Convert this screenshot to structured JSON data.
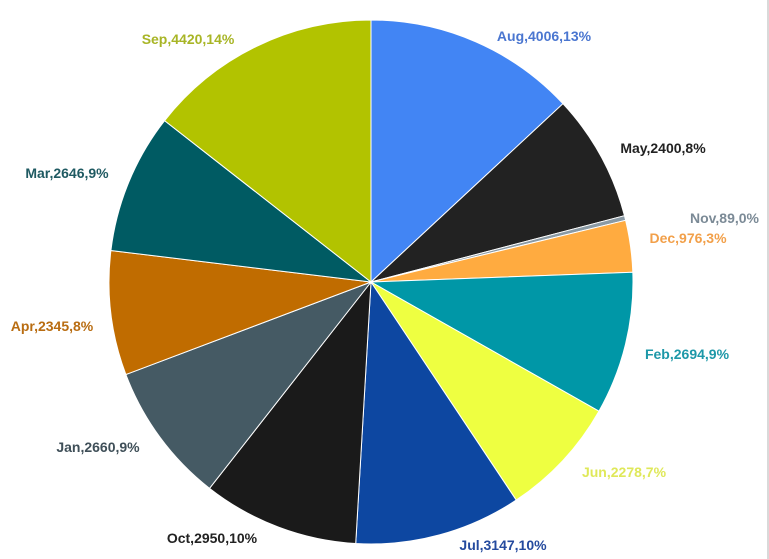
{
  "chart_data": {
    "type": "pie",
    "title": "",
    "start_angle_deg": 0,
    "direction": "clockwise",
    "slices": [
      {
        "label": "Aug",
        "value": 4006,
        "percent": 13,
        "text": "Aug,4006,13%",
        "color": "#4285f4",
        "label_color": "#4a76d0"
      },
      {
        "label": "May",
        "value": 2400,
        "percent": 8,
        "text": "May,2400,8%",
        "color": "#222222",
        "label_color": "#222222"
      },
      {
        "label": "Nov",
        "value": 89,
        "percent": 0,
        "text": "Nov,89,0%",
        "color": "#8a9aa5",
        "label_color": "#7b8a96"
      },
      {
        "label": "Dec",
        "value": 976,
        "percent": 3,
        "text": "Dec,976,3%",
        "color": "#ffab40",
        "label_color": "#f2a04a"
      },
      {
        "label": "Feb",
        "value": 2694,
        "percent": 9,
        "text": "Feb,2694,9%",
        "color": "#0097a7",
        "label_color": "#1d98a8"
      },
      {
        "label": "Jun",
        "value": 2278,
        "percent": 7,
        "text": "Jun,2278,7%",
        "color": "#eeff41",
        "label_color": "#dfe85a"
      },
      {
        "label": "Jul",
        "value": 3147,
        "percent": 10,
        "text": "Jul,3147,10%",
        "color": "#0d47a1",
        "label_color": "#244a9e"
      },
      {
        "label": "Oct",
        "value": 2950,
        "percent": 10,
        "text": "Oct,2950,10%",
        "color": "#1a1a1a",
        "label_color": "#222222"
      },
      {
        "label": "Jan",
        "value": 2660,
        "percent": 9,
        "text": "Jan,2660,9%",
        "color": "#455a64",
        "label_color": "#3f4f58"
      },
      {
        "label": "Apr",
        "value": 2345,
        "percent": 8,
        "text": "Apr,2345,8%",
        "color": "#c06c00",
        "label_color": "#b96d12"
      },
      {
        "label": "Mar",
        "value": 2646,
        "percent": 9,
        "text": "Mar,2646,9%",
        "color": "#005b63",
        "label_color": "#1f5a62"
      },
      {
        "label": "Sep",
        "value": 4420,
        "percent": 14,
        "text": "Sep,4420,14%",
        "color": "#b2c300",
        "label_color": "#a8b526"
      }
    ]
  }
}
